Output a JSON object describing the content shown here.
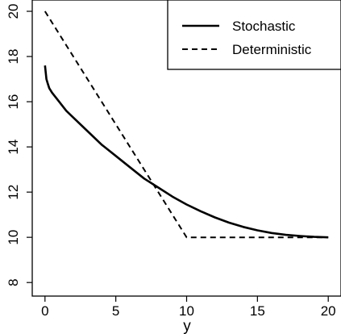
{
  "chart_data": {
    "type": "line",
    "title": "",
    "xlabel": "y",
    "ylabel": "",
    "xlim": [
      -0.9,
      20.9
    ],
    "ylim": [
      7.4,
      20.5
    ],
    "xticks": [
      0,
      5,
      10,
      15,
      20
    ],
    "yticks": [
      8,
      10,
      12,
      14,
      16,
      18,
      20
    ],
    "x_tick_labels": [
      "0",
      "5",
      "10",
      "15",
      "20"
    ],
    "y_tick_labels": [
      "8",
      "10",
      "12",
      "14",
      "16",
      "18",
      "20"
    ],
    "grid": false,
    "legend_position": "top-right",
    "series": [
      {
        "name": "Stochastic",
        "style": "solid",
        "color": "#000000",
        "x": [
          0,
          0.05,
          0.1,
          0.2,
          0.3,
          0.5,
          1,
          1.5,
          2,
          3,
          4,
          5,
          6,
          7,
          8,
          9,
          10,
          11,
          12,
          13,
          14,
          15,
          16,
          17,
          18,
          19,
          20
        ],
        "y": [
          17.6,
          17.3,
          17.0,
          16.8,
          16.6,
          16.4,
          16.0,
          15.6,
          15.3,
          14.7,
          14.1,
          13.6,
          13.1,
          12.6,
          12.2,
          11.8,
          11.45,
          11.15,
          10.88,
          10.65,
          10.46,
          10.31,
          10.19,
          10.11,
          10.06,
          10.02,
          10.0
        ]
      },
      {
        "name": "Deterministic",
        "style": "dashed",
        "color": "#000000",
        "x": [
          0,
          10,
          20
        ],
        "y": [
          20.0,
          10.0,
          10.0
        ]
      }
    ]
  }
}
